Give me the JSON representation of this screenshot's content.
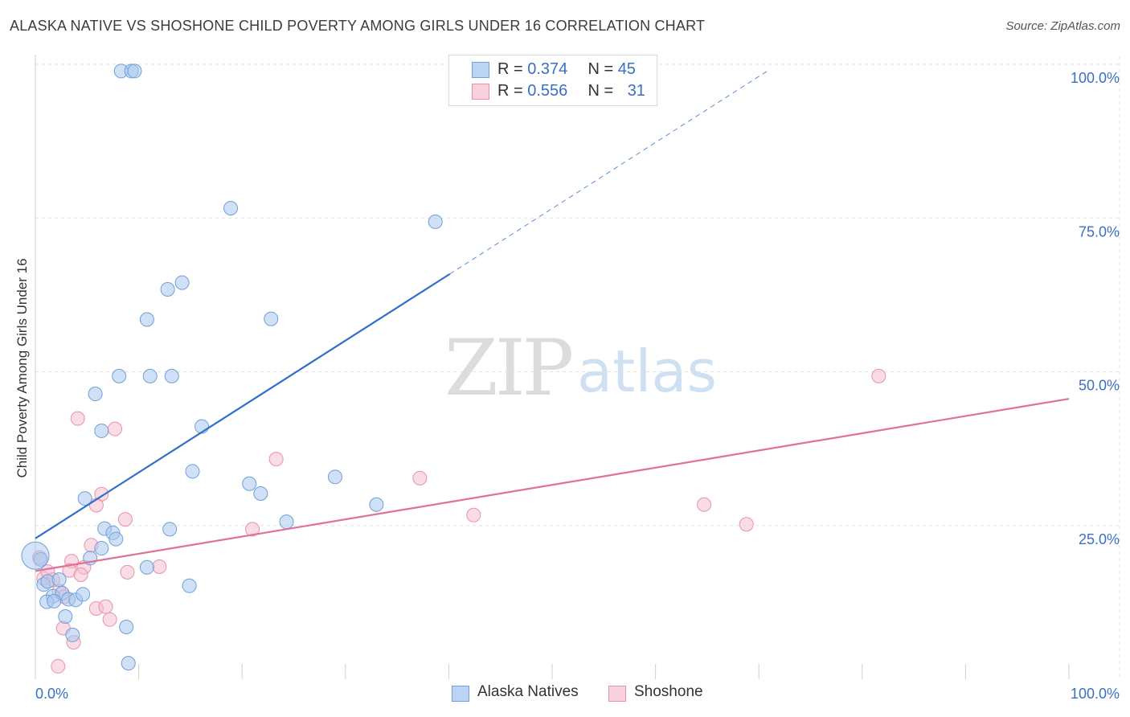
{
  "header": {
    "title": "ALASKA NATIVE VS SHOSHONE CHILD POVERTY AMONG GIRLS UNDER 16 CORRELATION CHART",
    "source": "Source: ZipAtlas.com"
  },
  "watermark": {
    "zip": "ZIP",
    "atlas": "atlas"
  },
  "legend": {
    "rows": [
      {
        "r_label": "R = ",
        "r_value": "0.374",
        "n_label": "N = ",
        "n_value": "45"
      },
      {
        "r_label": "R = ",
        "r_value": "0.556",
        "n_label": "N = ",
        "n_value": "31"
      }
    ]
  },
  "colors": {
    "alaska_fill": "#a9c8f0",
    "alaska_stroke": "#6f9fd8",
    "alaska_line": "#2f6fc9",
    "shoshone_fill": "#f6bfd0",
    "shoshone_stroke": "#e891ad",
    "shoshone_line": "#e0719a",
    "axis_text": "#3a6fc4",
    "grid": "#e2e2e2"
  },
  "chart_data": {
    "type": "scatter",
    "title": "ALASKA NATIVE VS SHOSHONE CHILD POVERTY AMONG GIRLS UNDER 16 CORRELATION CHART",
    "xlabel": "",
    "ylabel": "Child Poverty Among Girls Under 16",
    "xlim": [
      0,
      100
    ],
    "ylim": [
      0,
      100
    ],
    "x_tick_labels": [
      "0.0%",
      "100.0%"
    ],
    "y_ticks": [
      25,
      50,
      75,
      100
    ],
    "y_tick_labels": [
      "25.0%",
      "50.0%",
      "75.0%",
      "100.0%"
    ],
    "grid": true,
    "series": [
      {
        "name": "Alaska Natives",
        "r": 0.374,
        "n": 45,
        "trend": {
          "x0": 0,
          "y0": 22.9,
          "x1": 40.1,
          "y1": 65.9,
          "dash_to_x": 70.9,
          "dash_to_y": 99
        },
        "points": [
          [
            8.3,
            98.9
          ],
          [
            9.3,
            98.9
          ],
          [
            9.6,
            98.9
          ],
          [
            18.9,
            76.6
          ],
          [
            38.7,
            74.4
          ],
          [
            12.8,
            63.4
          ],
          [
            14.2,
            64.5
          ],
          [
            10.8,
            58.5
          ],
          [
            22.8,
            58.6
          ],
          [
            8.1,
            49.3
          ],
          [
            11.1,
            49.3
          ],
          [
            13.2,
            49.3
          ],
          [
            5.8,
            46.4
          ],
          [
            6.4,
            40.4
          ],
          [
            16.1,
            41.1
          ],
          [
            15.2,
            33.8
          ],
          [
            20.7,
            31.8
          ],
          [
            21.8,
            30.2
          ],
          [
            29.0,
            32.9
          ],
          [
            33.0,
            28.4
          ],
          [
            4.8,
            29.4
          ],
          [
            24.3,
            25.6
          ],
          [
            6.7,
            24.5
          ],
          [
            7.5,
            23.8
          ],
          [
            7.8,
            22.8
          ],
          [
            13.0,
            24.4
          ],
          [
            6.4,
            21.3
          ],
          [
            5.3,
            19.7
          ],
          [
            0.5,
            19.5
          ],
          [
            10.8,
            18.2
          ],
          [
            0.8,
            15.4
          ],
          [
            1.2,
            15.9
          ],
          [
            2.3,
            16.2
          ],
          [
            1.7,
            13.5
          ],
          [
            2.6,
            14.0
          ],
          [
            3.2,
            13.0
          ],
          [
            3.9,
            12.9
          ],
          [
            4.6,
            13.8
          ],
          [
            1.1,
            12.6
          ],
          [
            1.8,
            12.7
          ],
          [
            2.9,
            10.2
          ],
          [
            8.8,
            8.5
          ],
          [
            3.6,
            7.2
          ],
          [
            14.9,
            15.2
          ],
          [
            9.0,
            2.6
          ]
        ]
      },
      {
        "name": "Shoshone",
        "r": 0.556,
        "n": 31,
        "trend": {
          "x0": 0,
          "y0": 17.6,
          "x1": 100,
          "y1": 45.6
        },
        "points": [
          [
            81.6,
            49.3
          ],
          [
            4.1,
            42.4
          ],
          [
            7.7,
            40.7
          ],
          [
            23.3,
            35.8
          ],
          [
            37.2,
            32.7
          ],
          [
            6.4,
            30.1
          ],
          [
            5.9,
            28.3
          ],
          [
            64.7,
            28.4
          ],
          [
            42.4,
            26.7
          ],
          [
            8.7,
            26.0
          ],
          [
            21.0,
            24.4
          ],
          [
            68.8,
            25.2
          ],
          [
            5.4,
            21.8
          ],
          [
            3.5,
            19.2
          ],
          [
            4.7,
            18.2
          ],
          [
            12.0,
            18.3
          ],
          [
            0.4,
            19.8
          ],
          [
            0.8,
            16.4
          ],
          [
            1.2,
            17.5
          ],
          [
            3.3,
            17.7
          ],
          [
            4.4,
            17.0
          ],
          [
            8.9,
            17.4
          ],
          [
            1.7,
            16.2
          ],
          [
            2.3,
            14.3
          ],
          [
            2.8,
            13.4
          ],
          [
            5.9,
            11.5
          ],
          [
            6.8,
            11.8
          ],
          [
            7.2,
            9.7
          ],
          [
            2.7,
            8.3
          ],
          [
            3.7,
            6.0
          ],
          [
            2.2,
            2.1
          ]
        ]
      }
    ]
  }
}
